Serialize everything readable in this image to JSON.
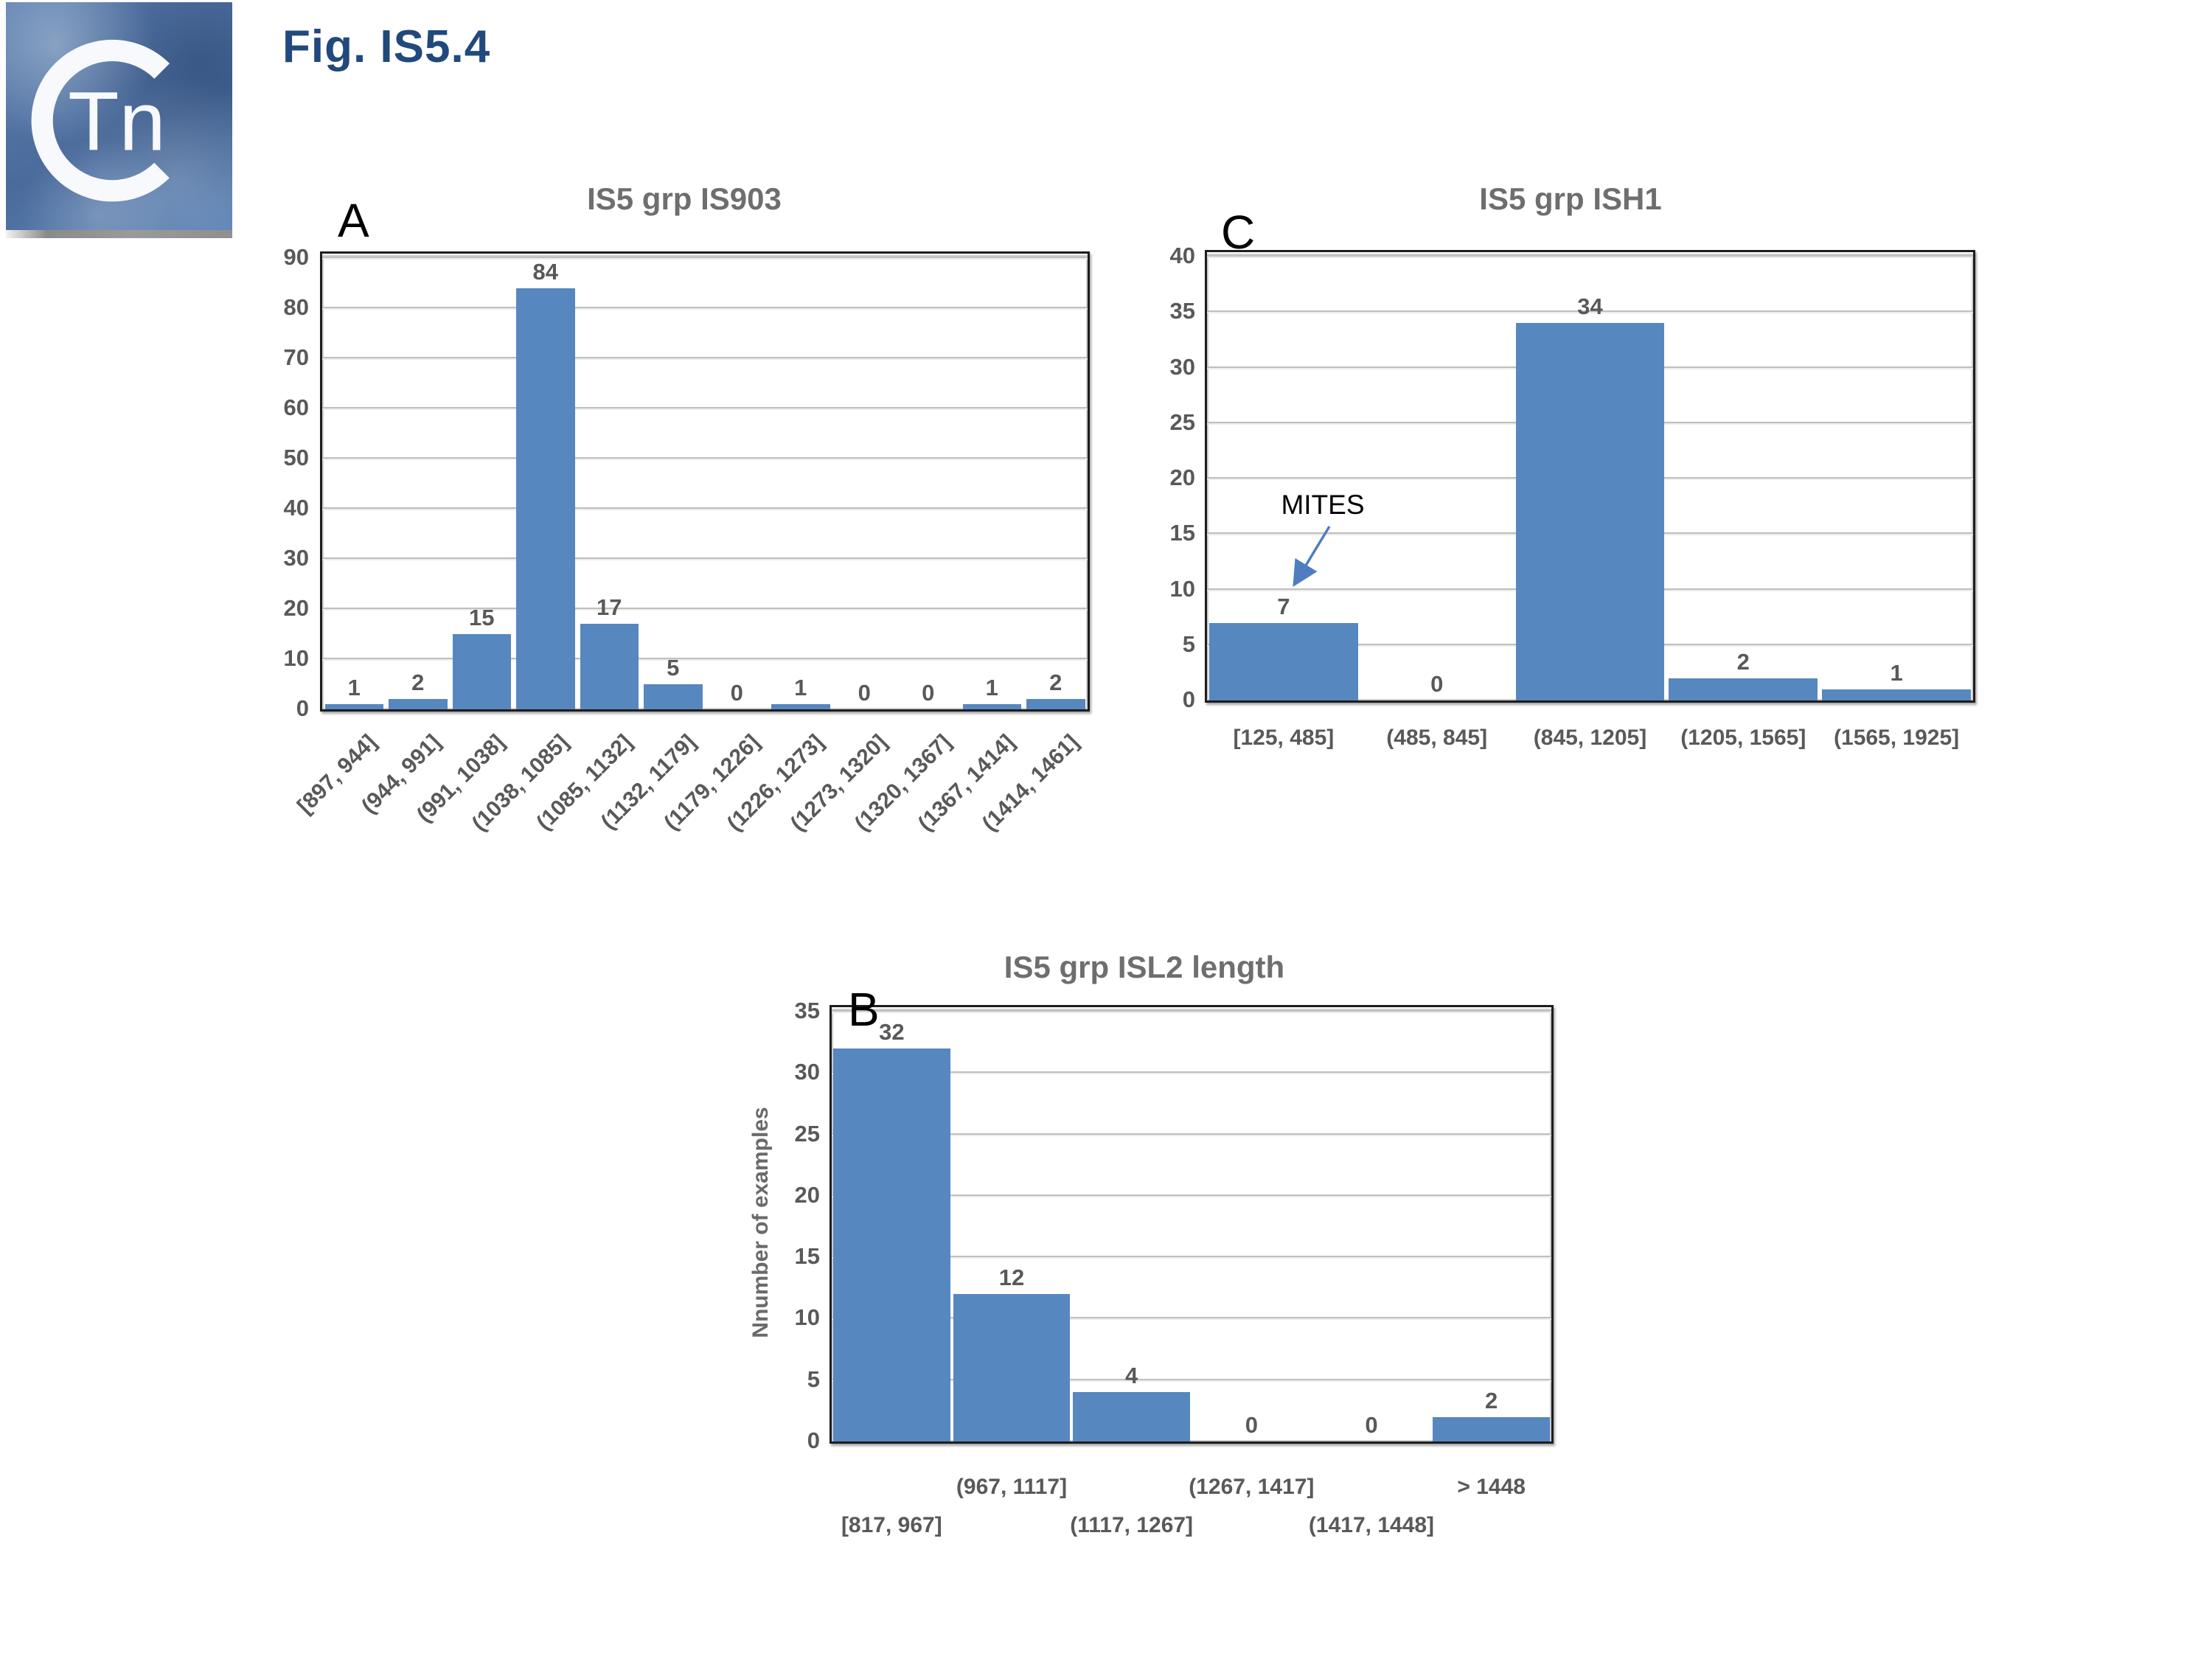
{
  "page": {
    "fig_label": "Fig. IS5.4"
  },
  "logo": {
    "ring_letter": "C",
    "text": "Tn"
  },
  "colors": {
    "bar": "#5687bf",
    "grid": "#bfbfbf",
    "tick_text": "#595959",
    "chart_title_text": "#6e6e6e",
    "frame": "#1d1d1d",
    "fig_title_blue": "#21497c",
    "arrow_blue": "#4f7dbf",
    "logo_blue": "#4e6fa3"
  },
  "chart_data": [
    {
      "id": "A",
      "panel_letter": "A",
      "type": "bar",
      "title": "IS5 grp IS903",
      "categories": [
        "[897, 944]",
        "(944, 991]",
        "(991, 1038]",
        "(1038, 1085]",
        "(1085, 1132]",
        "(1132, 1179]",
        "(1179, 1226]",
        "(1226, 1273]",
        "(1273, 1320]",
        "(1320, 1367]",
        "(1367, 1414]",
        "(1414, 1461]"
      ],
      "values": [
        1,
        2,
        15,
        84,
        17,
        5,
        0,
        1,
        0,
        0,
        1,
        2
      ],
      "xlabel": "",
      "ylabel": "",
      "ylim": [
        0,
        90
      ],
      "yticks": [
        0,
        10,
        20,
        30,
        40,
        50,
        60,
        70,
        80,
        90
      ],
      "grid": "on",
      "legend": "none",
      "xlabel_mode": "rotated"
    },
    {
      "id": "B",
      "panel_letter": "B",
      "type": "bar",
      "title": "IS5 grp ISL2 length",
      "categories": [
        "[817, 967]",
        "(967, 1117]",
        "(1117, 1267]",
        "(1267, 1417]",
        "(1417, 1448]",
        "> 1448"
      ],
      "values": [
        32,
        12,
        4,
        0,
        0,
        2
      ],
      "xlabel": "",
      "ylabel": "Nnumber of examples",
      "ylim": [
        0,
        35
      ],
      "yticks": [
        0,
        5,
        10,
        15,
        20,
        25,
        30,
        35
      ],
      "grid": "on",
      "legend": "none",
      "xlabel_mode": "staggered"
    },
    {
      "id": "C",
      "panel_letter": "C",
      "type": "bar",
      "title": "IS5 grp ISH1",
      "categories": [
        "[125, 485]",
        "(485, 845]",
        "(845, 1205]",
        "(1205, 1565]",
        "(1565, 1925]"
      ],
      "values": [
        7,
        0,
        34,
        2,
        1
      ],
      "xlabel": "",
      "ylabel": "",
      "ylim": [
        0,
        40
      ],
      "yticks": [
        0,
        5,
        10,
        15,
        20,
        25,
        30,
        35,
        40
      ],
      "grid": "on",
      "legend": "none",
      "xlabel_mode": "centered",
      "annotation": {
        "text": "MITES",
        "points_to": "[125, 485]"
      }
    }
  ]
}
